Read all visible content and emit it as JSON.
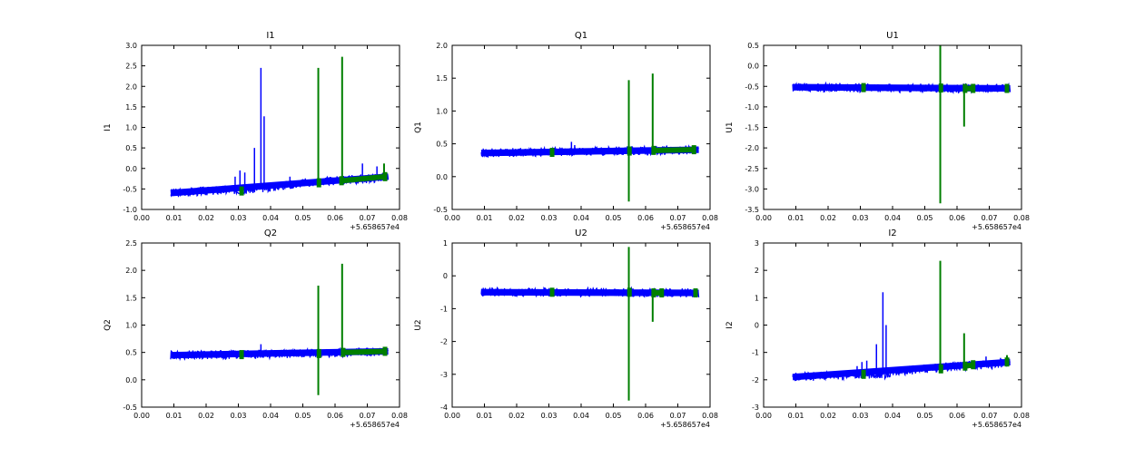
{
  "colors": {
    "series_main": "#0000ff",
    "series_flag": "#007f00",
    "axes": "#000000"
  },
  "chart_data": [
    {
      "type": "line",
      "title": "I1",
      "ylabel": "I1",
      "xlabel": "",
      "xlim": [
        0.0,
        0.08
      ],
      "ylim": [
        -1.0,
        3.0
      ],
      "xticks": [
        "0.00",
        "0.01",
        "0.02",
        "0.03",
        "0.04",
        "0.05",
        "0.06",
        "0.07",
        "0.08"
      ],
      "yticks": [
        "-1.0",
        "-0.5",
        "0.0",
        "0.5",
        "1.0",
        "1.5",
        "2.0",
        "2.5",
        "3.0"
      ],
      "x_offset_label": "+5.658657e4",
      "series": [
        {
          "color": "blue",
          "x": [
            0.009,
            0.02,
            0.03,
            0.035,
            0.04,
            0.05,
            0.06,
            0.07,
            0.0765
          ],
          "y": [
            -0.6,
            -0.55,
            -0.52,
            -0.5,
            -0.45,
            -0.35,
            -0.3,
            -0.25,
            -0.2
          ],
          "spikes": [
            {
              "x": 0.029,
              "y": -0.2
            },
            {
              "x": 0.0305,
              "y": -0.05
            },
            {
              "x": 0.032,
              "y": -0.1
            },
            {
              "x": 0.035,
              "y": 0.5
            },
            {
              "x": 0.037,
              "y": 2.45
            },
            {
              "x": 0.038,
              "y": 1.27
            },
            {
              "x": 0.046,
              "y": -0.2
            },
            {
              "x": 0.0685,
              "y": 0.12
            },
            {
              "x": 0.073,
              "y": 0.05
            }
          ]
        },
        {
          "color": "green",
          "x": [
            0.031,
            0.055,
            0.062,
            0.0755
          ],
          "y": [
            -0.55,
            -0.35,
            -0.3,
            -0.2
          ],
          "spikes": [
            {
              "x": 0.0548,
              "y": 2.45
            },
            {
              "x": 0.0622,
              "y": 2.72
            },
            {
              "x": 0.0752,
              "y": 0.12
            }
          ]
        }
      ]
    },
    {
      "type": "line",
      "title": "Q1",
      "ylabel": "Q1",
      "xlabel": "",
      "xlim": [
        0.0,
        0.08
      ],
      "ylim": [
        -0.5,
        2.0
      ],
      "xticks": [
        "0.00",
        "0.01",
        "0.02",
        "0.03",
        "0.04",
        "0.05",
        "0.06",
        "0.07",
        "0.08"
      ],
      "yticks": [
        "-0.5",
        "0.0",
        "0.5",
        "1.0",
        "1.5",
        "2.0"
      ],
      "x_offset_label": "+5.658657e4",
      "series": [
        {
          "color": "blue",
          "x": [
            0.009,
            0.03,
            0.05,
            0.0765
          ],
          "y": [
            0.36,
            0.38,
            0.39,
            0.41
          ],
          "spikes": [
            {
              "x": 0.037,
              "y": 0.53
            },
            {
              "x": 0.038,
              "y": 0.48
            }
          ]
        },
        {
          "color": "green",
          "x": [
            0.031,
            0.055,
            0.0625,
            0.075
          ],
          "y": [
            0.37,
            0.39,
            0.4,
            0.41
          ],
          "spikes": [
            {
              "x": 0.0548,
              "y": 1.47,
              "y0": -0.38
            },
            {
              "x": 0.0622,
              "y": 1.57,
              "y0": 0.4
            }
          ]
        }
      ]
    },
    {
      "type": "line",
      "title": "U1",
      "ylabel": "U1",
      "xlabel": "",
      "xlim": [
        0.0,
        0.08
      ],
      "ylim": [
        -3.5,
        0.5
      ],
      "xticks": [
        "0.00",
        "0.01",
        "0.02",
        "0.03",
        "0.04",
        "0.05",
        "0.06",
        "0.07",
        "0.08"
      ],
      "yticks": [
        "-3.5",
        "-3.0",
        "-2.5",
        "-2.0",
        "-1.5",
        "-1.0",
        "-0.5",
        "0.0",
        "0.5"
      ],
      "x_offset_label": "+5.658657e4",
      "series": [
        {
          "color": "blue",
          "x": [
            0.009,
            0.04,
            0.0765
          ],
          "y": [
            -0.52,
            -0.54,
            -0.55
          ],
          "spikes": []
        },
        {
          "color": "green",
          "x": [
            0.031,
            0.055,
            0.0625,
            0.065,
            0.0755
          ],
          "y": [
            -0.53,
            -0.54,
            -0.55,
            -0.55,
            -0.55
          ],
          "spikes": [
            {
              "x": 0.0548,
              "y": 0.5,
              "y0": -3.35
            },
            {
              "x": 0.0622,
              "y": -0.55,
              "y0": -1.48
            }
          ]
        }
      ]
    },
    {
      "type": "line",
      "title": "Q2",
      "ylabel": "Q2",
      "xlabel": "",
      "xlim": [
        0.0,
        0.08
      ],
      "ylim": [
        -0.5,
        2.5
      ],
      "xticks": [
        "0.00",
        "0.01",
        "0.02",
        "0.03",
        "0.04",
        "0.05",
        "0.06",
        "0.07",
        "0.08"
      ],
      "yticks": [
        "-0.5",
        "0.0",
        "0.5",
        "1.0",
        "1.5",
        "2.0",
        "2.5"
      ],
      "x_offset_label": "+5.658657e4",
      "series": [
        {
          "color": "blue",
          "x": [
            0.009,
            0.03,
            0.05,
            0.0765
          ],
          "y": [
            0.45,
            0.46,
            0.48,
            0.52
          ],
          "spikes": [
            {
              "x": 0.037,
              "y": 0.65
            }
          ]
        },
        {
          "color": "green",
          "x": [
            0.031,
            0.055,
            0.0625,
            0.0755
          ],
          "y": [
            0.46,
            0.48,
            0.5,
            0.52
          ],
          "spikes": [
            {
              "x": 0.0548,
              "y": 1.72,
              "y0": -0.28
            },
            {
              "x": 0.0622,
              "y": 2.12,
              "y0": 0.5
            }
          ]
        }
      ]
    },
    {
      "type": "line",
      "title": "U2",
      "ylabel": "U2",
      "xlabel": "",
      "xlim": [
        0.0,
        0.08
      ],
      "ylim": [
        -4.0,
        1.0
      ],
      "xticks": [
        "0.00",
        "0.01",
        "0.02",
        "0.03",
        "0.04",
        "0.05",
        "0.06",
        "0.07",
        "0.08"
      ],
      "yticks": [
        "-4",
        "-3",
        "-2",
        "-1",
        "0",
        "1"
      ],
      "x_offset_label": "+5.658657e4",
      "series": [
        {
          "color": "blue",
          "x": [
            0.009,
            0.04,
            0.0765
          ],
          "y": [
            -0.5,
            -0.5,
            -0.52
          ],
          "spikes": []
        },
        {
          "color": "green",
          "x": [
            0.031,
            0.055,
            0.0625,
            0.065,
            0.0755
          ],
          "y": [
            -0.5,
            -0.5,
            -0.52,
            -0.52,
            -0.52
          ],
          "spikes": [
            {
              "x": 0.0548,
              "y": 0.88,
              "y0": -3.8
            },
            {
              "x": 0.0622,
              "y": -0.5,
              "y0": -1.4
            }
          ]
        }
      ]
    },
    {
      "type": "line",
      "title": "I2",
      "ylabel": "I2",
      "xlabel": "",
      "xlim": [
        0.0,
        0.08
      ],
      "ylim": [
        -3.0,
        3.0
      ],
      "xticks": [
        "0.00",
        "0.01",
        "0.02",
        "0.03",
        "0.04",
        "0.05",
        "0.06",
        "0.07",
        "0.08"
      ],
      "yticks": [
        "-3",
        "-2",
        "-1",
        "0",
        "1",
        "2",
        "3"
      ],
      "x_offset_label": "+5.658657e4",
      "series": [
        {
          "color": "blue",
          "x": [
            0.009,
            0.02,
            0.03,
            0.038,
            0.04,
            0.05,
            0.06,
            0.07,
            0.0765
          ],
          "y": [
            -1.9,
            -1.85,
            -1.8,
            -1.8,
            -1.7,
            -1.6,
            -1.5,
            -1.45,
            -1.35
          ],
          "spikes": [
            {
              "x": 0.029,
              "y": -1.5
            },
            {
              "x": 0.0305,
              "y": -1.35
            },
            {
              "x": 0.032,
              "y": -1.3
            },
            {
              "x": 0.035,
              "y": -0.7
            },
            {
              "x": 0.037,
              "y": 1.2
            },
            {
              "x": 0.038,
              "y": 0.0
            },
            {
              "x": 0.046,
              "y": -1.5
            },
            {
              "x": 0.069,
              "y": -1.15
            },
            {
              "x": 0.0735,
              "y": -1.2
            }
          ]
        },
        {
          "color": "green",
          "x": [
            0.031,
            0.055,
            0.0625,
            0.065,
            0.0755
          ],
          "y": [
            -1.8,
            -1.6,
            -1.5,
            -1.45,
            -1.35
          ],
          "spikes": [
            {
              "x": 0.0548,
              "y": 2.35,
              "y0": -1.6
            },
            {
              "x": 0.0622,
              "y": -0.3,
              "y0": -1.5
            },
            {
              "x": 0.0755,
              "y": -1.1,
              "y0": -1.4
            }
          ]
        }
      ]
    }
  ]
}
